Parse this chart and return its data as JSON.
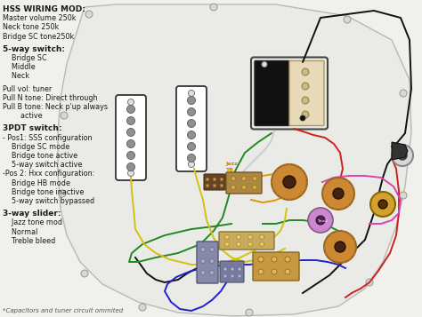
{
  "bg_color": "#f0f0ec",
  "pickguard_color": "#e8e8e4",
  "text_color": "#1a1a1a",
  "header_text": "HSS WIRING MOD:",
  "sub_lines": [
    "Master volume 250k",
    "Neck tone 250k",
    "Bridge SC tone250k"
  ],
  "section1_header": "5-way switch:",
  "section1_items": [
    "    Bridge SC",
    "    Middle",
    "    Neck"
  ],
  "section2_lines": [
    "Pull vol: tuner",
    "Pull N tone: Direct through",
    "Pull B tone: Neck p'up always",
    "        active"
  ],
  "section3_header": "3PDT switch:",
  "section3_items": [
    "- Pos1: SSS configuration",
    "    Bridge SC mode",
    "    Bridge tone active",
    "    5-way switch active",
    "-Pos 2: Hxx configuration:",
    "    Bridge HB mode",
    "    Bridge tone inactive",
    "    5-way switch bypassed"
  ],
  "section4_header": "3-way slider:",
  "section4_items": [
    "    Jazz tone mod",
    "    Normal",
    "    Treble bleed"
  ],
  "footer": "*Capacitors and tuner circuit ommited",
  "fig_width": 4.74,
  "fig_height": 3.57,
  "dpi": 100
}
